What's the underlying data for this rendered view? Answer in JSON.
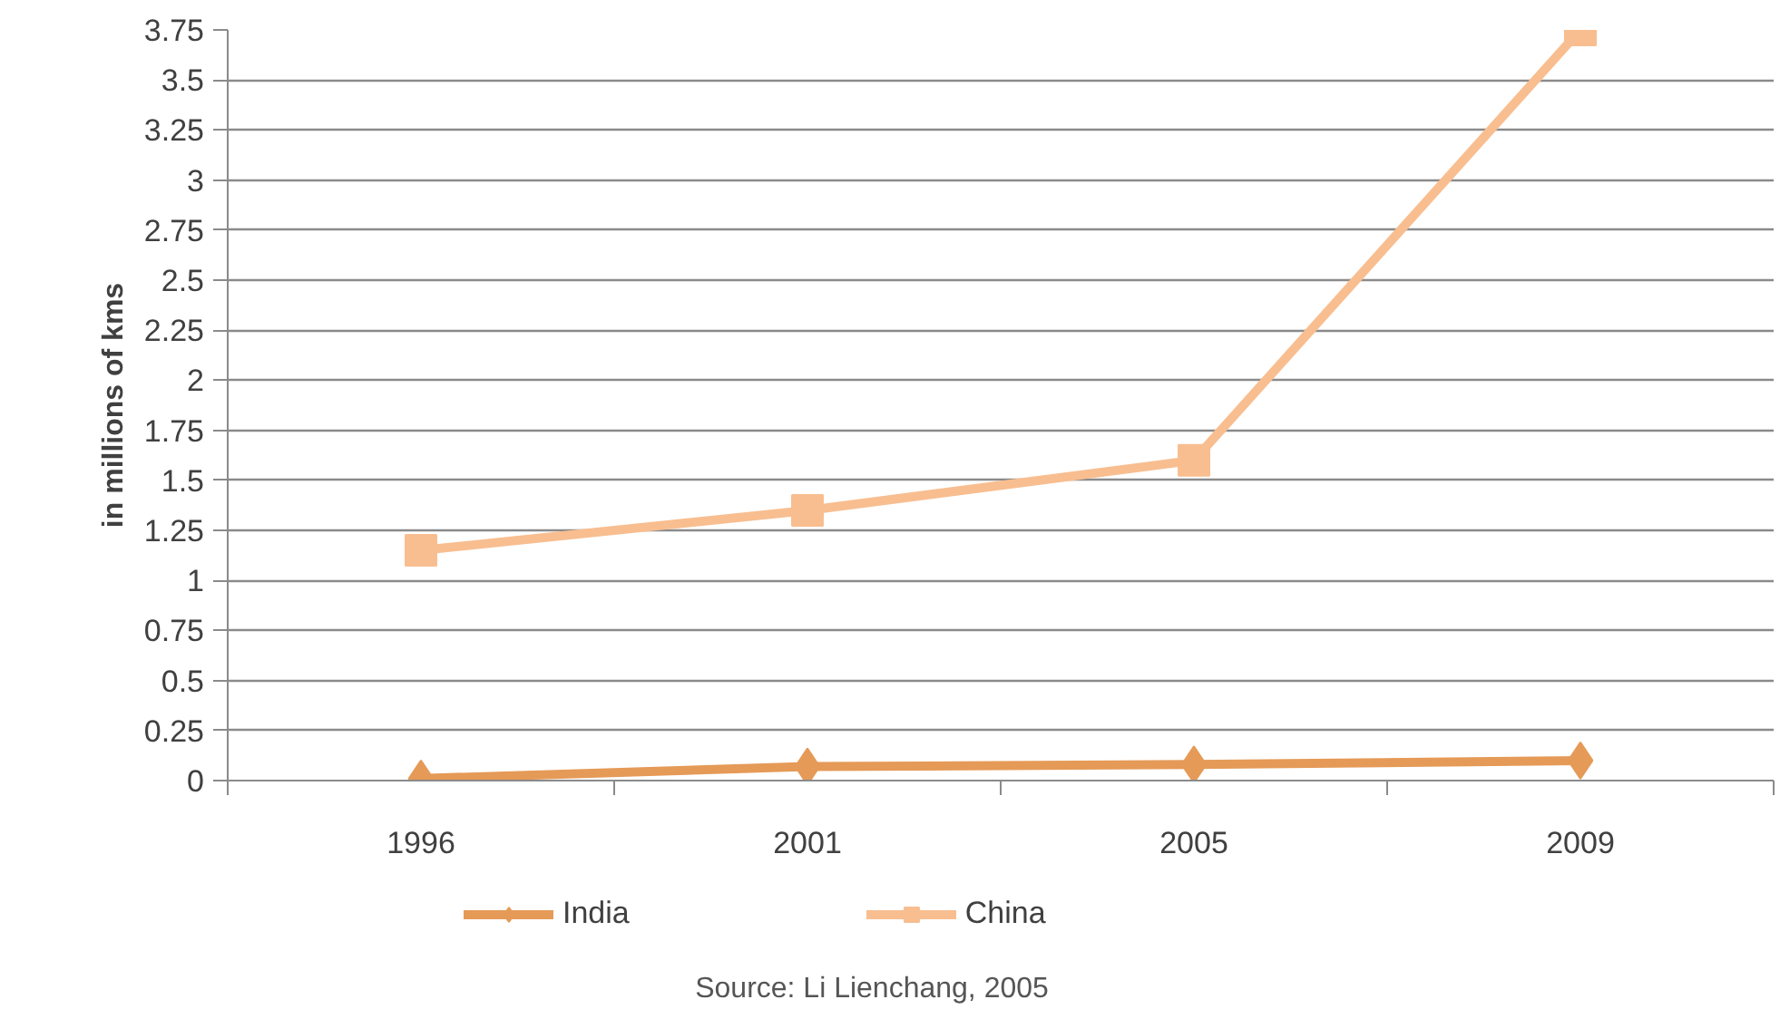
{
  "chart_data": {
    "type": "line",
    "categories": [
      "1996",
      "2001",
      "2005",
      "2009"
    ],
    "series": [
      {
        "name": "India",
        "color": "#e59a57",
        "marker": "diamond",
        "values": [
          0.01,
          0.07,
          0.08,
          0.1
        ]
      },
      {
        "name": "China",
        "color": "#f8be90",
        "marker": "square",
        "values": [
          1.15,
          1.35,
          1.6,
          3.75
        ]
      }
    ],
    "ylabel": "in millions of kms",
    "ylim": [
      0,
      3.75
    ],
    "yticks": [
      0,
      0.25,
      0.5,
      0.75,
      1,
      1.25,
      1.5,
      1.75,
      2,
      2.25,
      2.5,
      2.75,
      3,
      3.25,
      3.5,
      3.75
    ],
    "grid": "y",
    "legend": "bottom",
    "annotations": [
      "Source: Li Lienchang, 2005"
    ]
  }
}
